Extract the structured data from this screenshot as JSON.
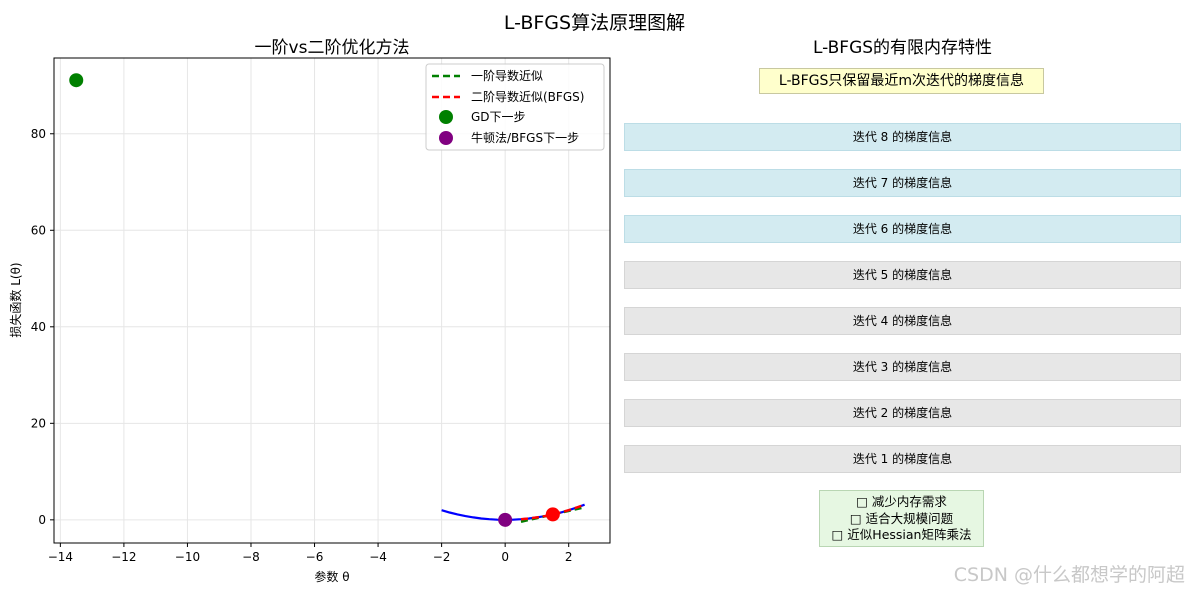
{
  "figure_title": "L-BFGS算法原理图解",
  "chart_data": [
    {
      "type": "line",
      "title": "一阶vs二阶优化方法",
      "xlabel": "参数 θ",
      "ylabel": "损失函数 L(θ)",
      "xlim": [
        -14.2,
        3.3
      ],
      "ylim": [
        -4.8,
        95.7
      ],
      "xticks": [
        -14,
        -12,
        -10,
        -8,
        -6,
        -4,
        -2,
        0,
        2
      ],
      "yticks": [
        0,
        20,
        40,
        60,
        80
      ],
      "grid": true,
      "legend_position": "top-right",
      "loss_curve": {
        "color": "#0000ff",
        "x": [
          -2.0,
          -1.75,
          -1.5,
          -1.25,
          -1.0,
          -0.75,
          -0.5,
          -0.25,
          0.0,
          0.25,
          0.5,
          0.75,
          1.0,
          1.25,
          1.5,
          1.75,
          2.0,
          2.25,
          2.5
        ],
        "y": [
          2.0,
          1.53,
          1.13,
          0.78,
          0.5,
          0.28,
          0.13,
          0.03,
          0.0,
          0.03,
          0.13,
          0.28,
          0.5,
          0.78,
          1.13,
          1.53,
          2.0,
          2.53,
          3.13
        ]
      },
      "series": [
        {
          "name": "一阶导数近似",
          "kind": "line",
          "dash": true,
          "color": "#008000",
          "x": [
            0.5,
            1.0,
            1.5,
            2.0,
            2.5
          ],
          "y": [
            -0.4,
            0.35,
            1.1,
            1.85,
            2.6
          ]
        },
        {
          "name": "二阶导数近似(BFGS)",
          "kind": "line",
          "dash": true,
          "color": "#ff0000",
          "x": [
            0.5,
            0.75,
            1.0,
            1.25,
            1.5,
            1.75,
            2.0,
            2.25,
            2.5
          ],
          "y": [
            0.13,
            0.28,
            0.5,
            0.78,
            1.13,
            1.53,
            2.0,
            2.53,
            3.13
          ]
        },
        {
          "name": "GD下一步",
          "kind": "scatter",
          "color": "#008000",
          "x": [
            -13.5
          ],
          "y": [
            91.1
          ]
        },
        {
          "name": "牛顿法/BFGS下一步",
          "kind": "scatter",
          "color": "#800080",
          "x": [
            0.0
          ],
          "y": [
            0.0
          ]
        }
      ],
      "current_point": {
        "color": "#ff0000",
        "x": 1.5,
        "y": 1.13
      }
    }
  ],
  "right_panel": {
    "title": "L-BFGS的有限内存特性",
    "subtitle": "L-BFGS只保留最近m次迭代的梯度信息",
    "memory_blocks": [
      {
        "label": "迭代 8 的梯度信息",
        "recent": true
      },
      {
        "label": "迭代 7 的梯度信息",
        "recent": true
      },
      {
        "label": "迭代 6 的梯度信息",
        "recent": true
      },
      {
        "label": "迭代 5 的梯度信息",
        "recent": false
      },
      {
        "label": "迭代 4 的梯度信息",
        "recent": false
      },
      {
        "label": "迭代 3 的梯度信息",
        "recent": false
      },
      {
        "label": "迭代 2 的梯度信息",
        "recent": false
      },
      {
        "label": "迭代 1 的梯度信息",
        "recent": false
      }
    ],
    "benefits": [
      "□ 减少内存需求",
      "□ 适合大规模问题",
      "□ 近似Hessian矩阵乘法"
    ]
  },
  "watermark": "CSDN @什么都想学的阿超"
}
